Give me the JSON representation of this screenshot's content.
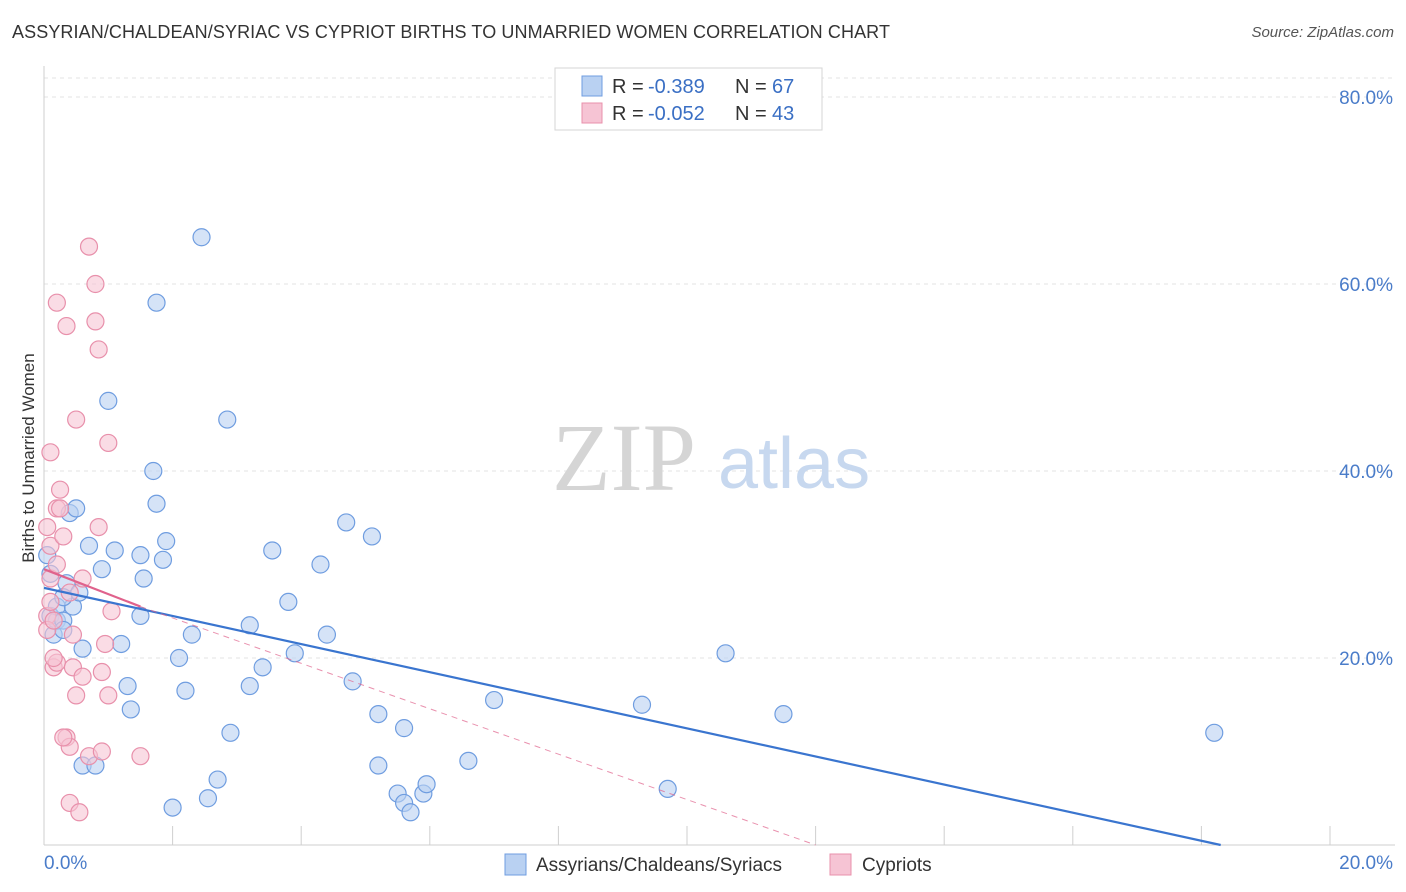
{
  "chart_data": {
    "type": "scatter",
    "title": "ASSYRIAN/CHALDEAN/SYRIAC VS CYPRIOT BIRTHS TO UNMARRIED WOMEN CORRELATION CHART",
    "source": "Source: ZipAtlas.com",
    "ylabel": "Births to Unmarried Women",
    "xlabel": "",
    "xlim": [
      0,
      20
    ],
    "ylim": [
      0,
      80
    ],
    "x_tick_labels": [
      "0.0%",
      "20.0%"
    ],
    "y_ticks": [
      {
        "value": 20,
        "label": "20.0%"
      },
      {
        "value": 40,
        "label": "40.0%"
      },
      {
        "value": 60,
        "label": "60.0%"
      },
      {
        "value": 80,
        "label": "80.0%"
      }
    ],
    "watermark": {
      "part1": "ZIP",
      "part2": "atlas"
    },
    "legend": {
      "r_label": "R =",
      "n_label": "N =",
      "entries": [
        {
          "r": "-0.389",
          "n": "67"
        },
        {
          "r": "-0.052",
          "n": "43"
        }
      ]
    },
    "series": [
      {
        "name": "Assyrians/Chaldeans/Syriacs",
        "color": "#6f9de0",
        "fill": "#b9d1f2",
        "trend": {
          "x0": 0,
          "y0": 27.5,
          "x1": 18.3,
          "y1": 0,
          "dashed": false,
          "color": "#3a75cf"
        },
        "points": [
          [
            0.1,
            29.0
          ],
          [
            0.1,
            24.5
          ],
          [
            0.15,
            22.5
          ],
          [
            0.2,
            24.0
          ],
          [
            0.2,
            25.5
          ],
          [
            0.3,
            24.0
          ],
          [
            0.3,
            23.0
          ],
          [
            0.35,
            28.0
          ],
          [
            0.4,
            35.5
          ],
          [
            0.45,
            25.5
          ],
          [
            0.5,
            36.0
          ],
          [
            0.55,
            27.0
          ],
          [
            0.6,
            8.5
          ],
          [
            0.6,
            21.0
          ],
          [
            0.7,
            32.0
          ],
          [
            0.8,
            8.5
          ],
          [
            0.9,
            29.5
          ],
          [
            1.0,
            47.5
          ],
          [
            1.1,
            31.5
          ],
          [
            1.2,
            21.5
          ],
          [
            1.3,
            17.0
          ],
          [
            1.35,
            14.5
          ],
          [
            1.5,
            31.0
          ],
          [
            1.5,
            24.5
          ],
          [
            1.55,
            28.5
          ],
          [
            1.7,
            40.0
          ],
          [
            1.75,
            36.5
          ],
          [
            1.75,
            58.0
          ],
          [
            1.85,
            30.5
          ],
          [
            1.9,
            32.5
          ],
          [
            2.0,
            4.0
          ],
          [
            2.1,
            20.0
          ],
          [
            2.2,
            16.5
          ],
          [
            2.3,
            22.5
          ],
          [
            2.45,
            65.0
          ],
          [
            2.55,
            5.0
          ],
          [
            2.7,
            7.0
          ],
          [
            2.85,
            45.5
          ],
          [
            2.9,
            12.0
          ],
          [
            3.2,
            17.0
          ],
          [
            3.2,
            23.5
          ],
          [
            3.4,
            19.0
          ],
          [
            3.55,
            31.5
          ],
          [
            3.8,
            26.0
          ],
          [
            3.9,
            20.5
          ],
          [
            4.3,
            30.0
          ],
          [
            4.4,
            22.5
          ],
          [
            4.7,
            34.5
          ],
          [
            4.8,
            17.5
          ],
          [
            5.1,
            33.0
          ],
          [
            5.2,
            14.0
          ],
          [
            5.2,
            8.5
          ],
          [
            5.5,
            5.5
          ],
          [
            5.6,
            12.5
          ],
          [
            5.6,
            4.5
          ],
          [
            5.7,
            3.5
          ],
          [
            5.9,
            5.5
          ],
          [
            5.95,
            6.5
          ],
          [
            6.6,
            9.0
          ],
          [
            7.0,
            15.5
          ],
          [
            9.3,
            15.0
          ],
          [
            9.7,
            6.0
          ],
          [
            10.6,
            20.5
          ],
          [
            11.5,
            14.0
          ],
          [
            18.2,
            12.0
          ],
          [
            0.05,
            31.0
          ],
          [
            0.3,
            26.5
          ]
        ]
      },
      {
        "name": "Cypriots",
        "color": "#e890ab",
        "fill": "#f6c4d4",
        "trend": {
          "x0": 0,
          "y0": 29.5,
          "x1": 1.5,
          "y1": 25.5,
          "dashed": false,
          "color": "#e0628c",
          "ext_x1": 12.0,
          "ext_y1": 0
        },
        "points": [
          [
            0.05,
            34.0
          ],
          [
            0.05,
            24.5
          ],
          [
            0.05,
            23.0
          ],
          [
            0.1,
            42.0
          ],
          [
            0.1,
            32.0
          ],
          [
            0.1,
            28.5
          ],
          [
            0.15,
            19.0
          ],
          [
            0.15,
            24.0
          ],
          [
            0.2,
            19.5
          ],
          [
            0.2,
            36.0
          ],
          [
            0.2,
            58.0
          ],
          [
            0.25,
            38.0
          ],
          [
            0.25,
            36.0
          ],
          [
            0.3,
            33.0
          ],
          [
            0.35,
            11.5
          ],
          [
            0.35,
            55.5
          ],
          [
            0.4,
            10.5
          ],
          [
            0.4,
            4.5
          ],
          [
            0.45,
            22.5
          ],
          [
            0.45,
            19.0
          ],
          [
            0.5,
            16.0
          ],
          [
            0.5,
            45.5
          ],
          [
            0.55,
            3.5
          ],
          [
            0.6,
            28.5
          ],
          [
            0.6,
            18.0
          ],
          [
            0.7,
            64.0
          ],
          [
            0.7,
            9.5
          ],
          [
            0.8,
            60.0
          ],
          [
            0.8,
            56.0
          ],
          [
            0.85,
            53.0
          ],
          [
            0.85,
            34.0
          ],
          [
            0.9,
            10.0
          ],
          [
            0.9,
            18.5
          ],
          [
            0.95,
            21.5
          ],
          [
            1.0,
            16.0
          ],
          [
            1.0,
            43.0
          ],
          [
            1.05,
            25.0
          ],
          [
            1.5,
            9.5
          ],
          [
            0.15,
            20.0
          ],
          [
            0.3,
            11.5
          ],
          [
            0.1,
            26.0
          ],
          [
            0.2,
            30.0
          ],
          [
            0.4,
            27.0
          ]
        ]
      }
    ]
  }
}
